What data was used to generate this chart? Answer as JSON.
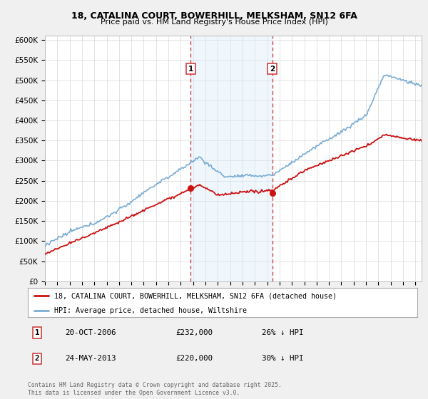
{
  "title_line1": "18, CATALINA COURT, BOWERHILL, MELKSHAM, SN12 6FA",
  "title_line2": "Price paid vs. HM Land Registry's House Price Index (HPI)",
  "ylabel_ticks": [
    "£0",
    "£50K",
    "£100K",
    "£150K",
    "£200K",
    "£250K",
    "£300K",
    "£350K",
    "£400K",
    "£450K",
    "£500K",
    "£550K",
    "£600K"
  ],
  "ytick_values": [
    0,
    50000,
    100000,
    150000,
    200000,
    250000,
    300000,
    350000,
    400000,
    450000,
    500000,
    550000,
    600000
  ],
  "xlim_start": 1995.0,
  "xlim_end": 2025.5,
  "ylim_min": 0,
  "ylim_max": 610000,
  "hpi_color": "#7aadd4",
  "price_color": "#cc1111",
  "vline_color": "#cc3333",
  "shade_color": "#d8eaf8",
  "marker1_date": 2006.8,
  "marker1_price": 232000,
  "marker2_date": 2013.4,
  "marker2_price": 220000,
  "legend_line1": "18, CATALINA COURT, BOWERHILL, MELKSHAM, SN12 6FA (detached house)",
  "legend_line2": "HPI: Average price, detached house, Wiltshire",
  "annotation1_num": "1",
  "annotation1_date": "20-OCT-2006",
  "annotation1_price": "£232,000",
  "annotation1_hpi": "26% ↓ HPI",
  "annotation2_num": "2",
  "annotation2_date": "24-MAY-2013",
  "annotation2_price": "£220,000",
  "annotation2_hpi": "30% ↓ HPI",
  "footnote": "Contains HM Land Registry data © Crown copyright and database right 2025.\nThis data is licensed under the Open Government Licence v3.0.",
  "background_color": "#f0f0f0",
  "plot_bg_color": "#ffffff"
}
